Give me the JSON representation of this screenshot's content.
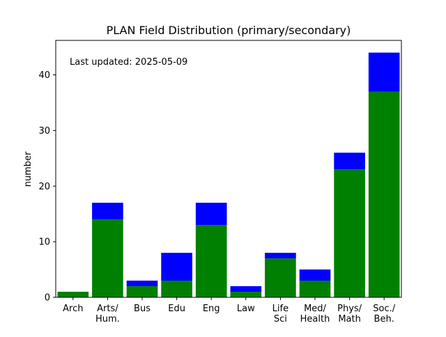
{
  "chart_data": {
    "type": "bar",
    "stacked": true,
    "title": "PLAN Field Distribution (primary/secondary)",
    "xlabel": "",
    "ylabel": "number",
    "annotation": "Last updated: 2025-05-09",
    "categories": [
      [
        "Arch"
      ],
      [
        "Arts/",
        "Hum."
      ],
      [
        "Bus"
      ],
      [
        "Edu"
      ],
      [
        "Eng"
      ],
      [
        "Law"
      ],
      [
        "Life",
        "Sci"
      ],
      [
        "Med/",
        "Health"
      ],
      [
        "Phys/",
        "Math"
      ],
      [
        "Soc./",
        "Beh."
      ]
    ],
    "series": [
      {
        "color": "#008000",
        "values": [
          1,
          14,
          2,
          3,
          13,
          1,
          7,
          3,
          23,
          37
        ]
      },
      {
        "color": "#0000ff",
        "values": [
          0,
          3,
          1,
          5,
          4,
          1,
          1,
          2,
          3,
          7
        ]
      }
    ],
    "ylim": [
      0,
      46.2
    ],
    "yticks": [
      0,
      10,
      20,
      30,
      40
    ],
    "grid": false,
    "legend": "none"
  }
}
